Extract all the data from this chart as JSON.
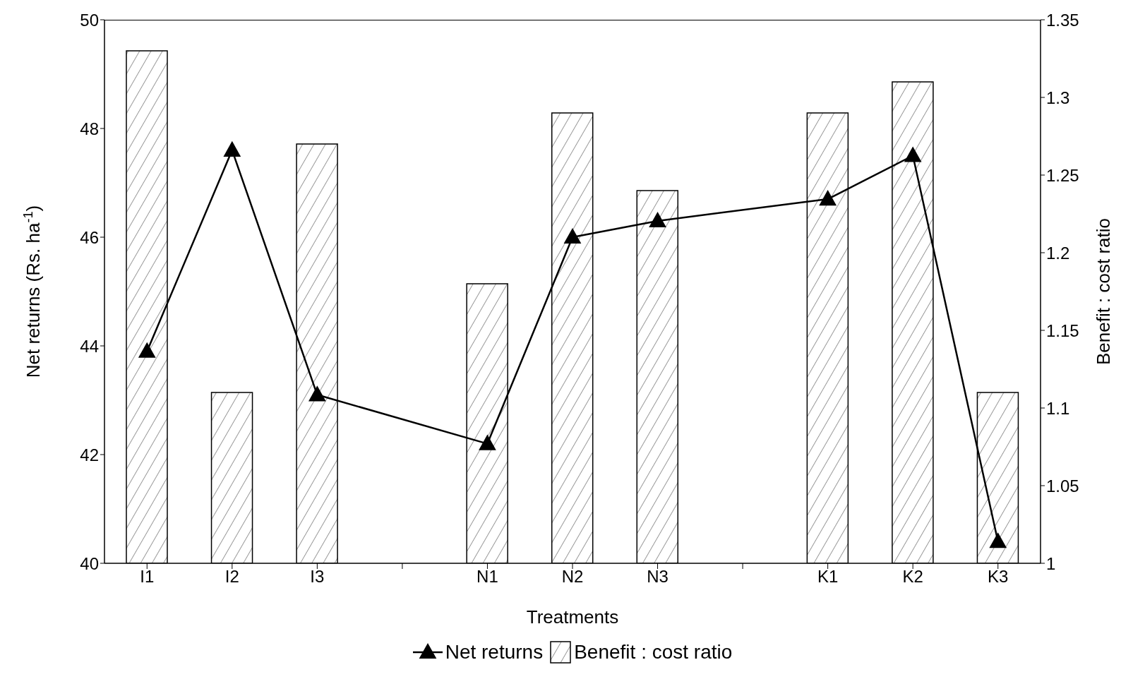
{
  "chart_data": {
    "type": "bar",
    "xlabel": "Treatments",
    "ylabel": "Net returns (Rs. ha$^{-1}$)",
    "y2label": "Benefit : cost ratio",
    "categories": [
      "I1",
      "I2",
      "I3",
      null,
      "N1",
      "N2",
      "N3",
      null,
      "K1",
      "K2",
      "K3"
    ],
    "series": [
      {
        "name": "Net returns",
        "type": "line",
        "color": "#000000",
        "values": [
          43.9,
          47.6,
          43.1,
          null,
          42.2,
          46.0,
          46.3,
          null,
          46.7,
          47.5,
          40.4
        ]
      },
      {
        "name": "Benefit : cost ratio",
        "axis": "y2",
        "color": "#000000",
        "values": [
          1.33,
          1.11,
          1.27,
          null,
          1.18,
          1.29,
          1.24,
          null,
          1.29,
          1.31,
          1.11
        ]
      }
    ],
    "ylim": [
      40,
      50
    ],
    "yticks": [
      40,
      42,
      44,
      46,
      48,
      50
    ],
    "y2lim": [
      1,
      1.35
    ],
    "y2ticks": [
      1,
      1.05,
      1.1,
      1.15,
      1.2,
      1.25,
      1.3,
      1.35
    ],
    "marker": "triangle",
    "line_style": "solid",
    "grid": false,
    "legend": "bottom"
  }
}
